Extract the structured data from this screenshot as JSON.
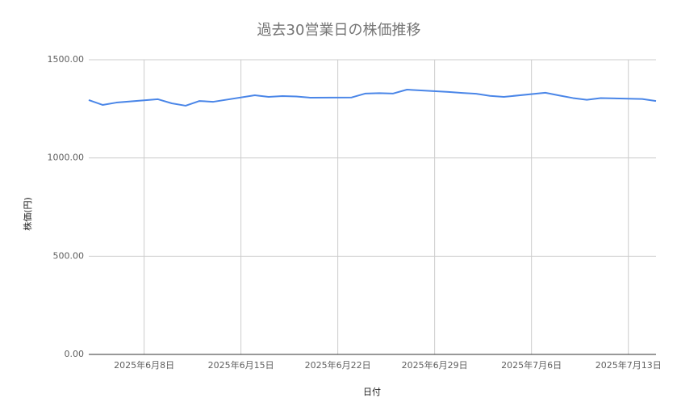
{
  "chart_data": {
    "type": "line",
    "title": "過去30営業日の株価推移",
    "x_label": "日付",
    "y_label": "株価(円)",
    "x": [
      "2025-06-04",
      "2025-06-05",
      "2025-06-06",
      "2025-06-09",
      "2025-06-10",
      "2025-06-11",
      "2025-06-12",
      "2025-06-13",
      "2025-06-16",
      "2025-06-17",
      "2025-06-18",
      "2025-06-19",
      "2025-06-20",
      "2025-06-23",
      "2025-06-24",
      "2025-06-25",
      "2025-06-26",
      "2025-06-27",
      "2025-06-30",
      "2025-07-01",
      "2025-07-02",
      "2025-07-03",
      "2025-07-04",
      "2025-07-07",
      "2025-07-08",
      "2025-07-09",
      "2025-07-10",
      "2025-07-11",
      "2025-07-14",
      "2025-07-15"
    ],
    "series": [
      {
        "name": "株価",
        "color": "#4a86e8",
        "values": [
          1295,
          1270,
          1282,
          1299,
          1278,
          1266,
          1290,
          1286,
          1319,
          1311,
          1315,
          1313,
          1307,
          1308,
          1328,
          1330,
          1328,
          1348,
          1336,
          1331,
          1327,
          1316,
          1311,
          1332,
          1318,
          1305,
          1296,
          1305,
          1300,
          1290
        ]
      }
    ],
    "xlim": [
      "2025-06-04",
      "2025-07-15"
    ],
    "xticks": [
      {
        "value": "2025-06-08",
        "label": "2025年6月8日"
      },
      {
        "value": "2025-06-15",
        "label": "2025年6月15日"
      },
      {
        "value": "2025-06-22",
        "label": "2025年6月22日"
      },
      {
        "value": "2025-06-29",
        "label": "2025年6月29日"
      },
      {
        "value": "2025-07-06",
        "label": "2025年7月6日"
      },
      {
        "value": "2025-07-13",
        "label": "2025年7月13日"
      }
    ],
    "ylim": [
      0,
      1500
    ],
    "yticks": [
      {
        "value": 0,
        "label": "0.00"
      },
      {
        "value": 500,
        "label": "500.00"
      },
      {
        "value": 1000,
        "label": "1000.00"
      },
      {
        "value": 1500,
        "label": "1500.00"
      }
    ],
    "grid": true
  }
}
